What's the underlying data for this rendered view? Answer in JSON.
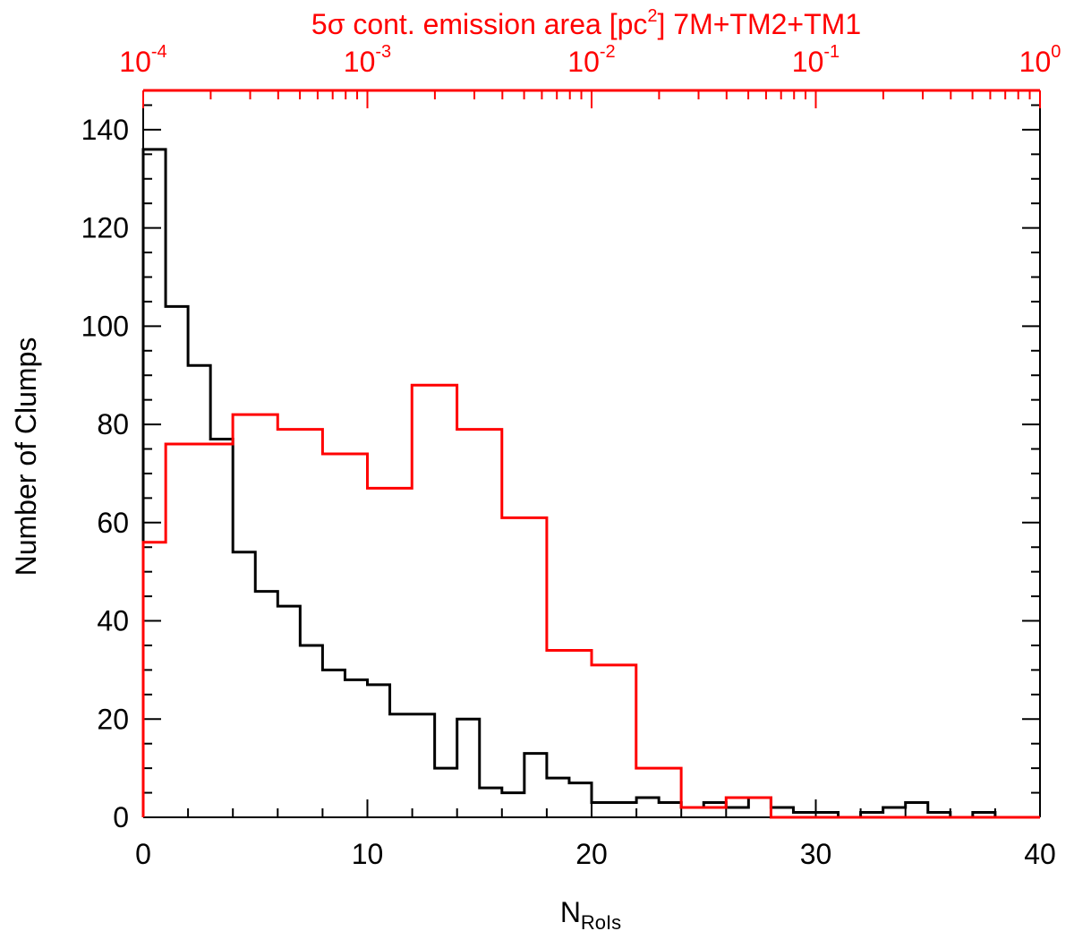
{
  "colors": {
    "primary_series": "#000000",
    "secondary_series": "#ff0000",
    "frame": "#000000",
    "top_axis": "#ff0000"
  },
  "chart_data": {
    "type": "histogram",
    "xlabel": "N",
    "xlabel_subscript": "RoIs",
    "ylabel": "Number of Clumps",
    "top_xlabel_prefix": "5σ cont. emission area [pc",
    "top_xlabel_sup": "2",
    "top_xlabel_suffix": "] 7M+TM2+TM1",
    "xlim": [
      0,
      40
    ],
    "ylim": [
      0,
      148
    ],
    "top_xlim": [
      0.0001,
      1
    ],
    "top_x_scale": "log",
    "xticks": [
      "0",
      "10",
      "20",
      "30",
      "40"
    ],
    "yticks": [
      "0",
      "20",
      "40",
      "60",
      "80",
      "100",
      "120",
      "140"
    ],
    "top_xticks": [
      {
        "base": "10",
        "exp": "-4"
      },
      {
        "base": "10",
        "exp": "-3"
      },
      {
        "base": "10",
        "exp": "-2"
      },
      {
        "base": "10",
        "exp": "-1"
      },
      {
        "base": "10",
        "exp": "0"
      }
    ],
    "series": [
      {
        "axis": "bottom",
        "color": "#000000",
        "bin_edges": [
          0,
          1,
          2,
          3,
          4,
          5,
          6,
          7,
          8,
          9,
          10,
          11,
          12,
          13,
          14,
          15,
          16,
          17,
          18,
          19,
          20,
          21,
          22,
          23,
          24,
          25,
          26,
          27,
          28,
          29,
          30,
          31,
          32,
          33,
          34,
          35,
          36,
          37,
          38,
          39,
          40
        ],
        "counts": [
          136,
          104,
          92,
          77,
          54,
          46,
          43,
          35,
          30,
          28,
          27,
          21,
          21,
          10,
          20,
          6,
          5,
          13,
          8,
          7,
          3,
          3,
          4,
          3,
          2,
          3,
          2,
          4,
          2,
          1,
          1,
          0,
          1,
          2,
          3,
          1,
          0,
          1,
          0,
          0
        ]
      },
      {
        "axis": "top",
        "color": "#ff0000",
        "bin_edges": [
          0.0001,
          0.000126,
          0.000251,
          0.000398,
          0.000631,
          0.001,
          0.00158,
          0.00251,
          0.00398,
          0.00631,
          0.01,
          0.0158,
          0.0251,
          0.0398,
          0.0631,
          0.1,
          0.158,
          0.251,
          0.398,
          1
        ],
        "counts": [
          56,
          76,
          82,
          79,
          74,
          67,
          88,
          79,
          61,
          34,
          31,
          10,
          2,
          4,
          0,
          0,
          0,
          0,
          0
        ]
      }
    ]
  }
}
